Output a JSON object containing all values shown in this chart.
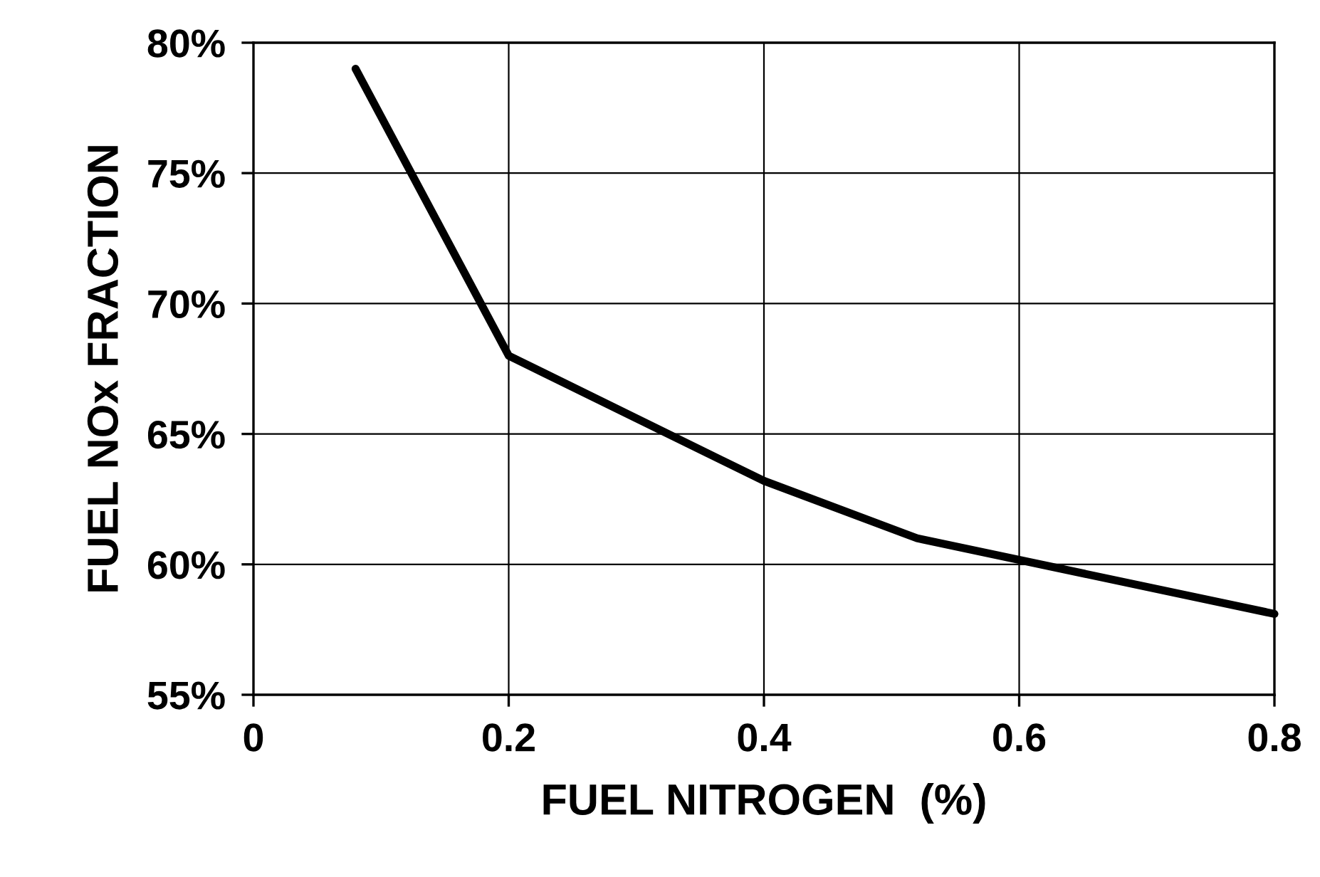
{
  "chart_data": {
    "type": "line",
    "xlabel": "FUEL NITROGEN  (%)",
    "ylabel": "FUEL NOx FRACTION",
    "x": [
      0.08,
      0.2,
      0.4,
      0.52,
      0.8
    ],
    "series": [
      {
        "color": "#000000",
        "values": [
          79.0,
          68.0,
          63.2,
          61.0,
          58.1
        ]
      }
    ],
    "xlim": [
      0,
      0.8
    ],
    "ylim": [
      55,
      80
    ],
    "xticks": [
      0,
      0.2,
      0.4,
      0.6,
      0.8
    ],
    "yticks": [
      {
        "value": 55,
        "label": "55%"
      },
      {
        "value": 60,
        "label": "60%"
      },
      {
        "value": 65,
        "label": "65%"
      },
      {
        "value": 70,
        "label": "70%"
      },
      {
        "value": 75,
        "label": "75%"
      },
      {
        "value": 80,
        "label": "80%"
      }
    ],
    "grid": true,
    "marker": "none",
    "line_style": "solid",
    "legend": false
  }
}
